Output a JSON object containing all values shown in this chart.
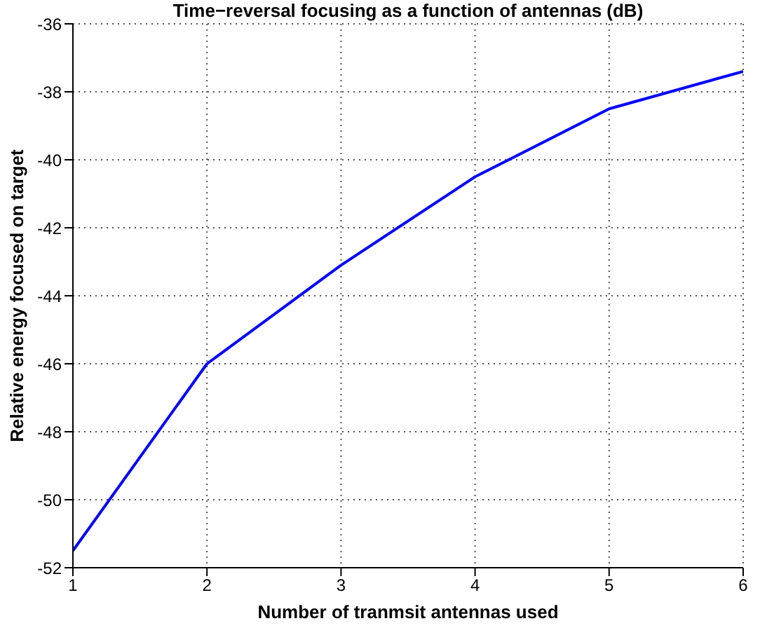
{
  "chart_data": {
    "type": "line",
    "title": "Time−reversal focusing as a function of antennas (dB)",
    "xlabel": "Number of tranmsit antennas used",
    "ylabel": "Relative energy focused on target",
    "x": [
      1,
      2,
      3,
      4,
      5,
      6
    ],
    "series": [
      {
        "color": "#0000ff",
        "values": [
          -51.5,
          -46.0,
          -43.1,
          -40.5,
          -38.5,
          -37.4
        ]
      }
    ],
    "xlim": [
      1,
      6
    ],
    "xticks": [
      1,
      2,
      3,
      4,
      5,
      6
    ],
    "ylim": [
      -52,
      -36
    ],
    "yticks": [
      -52,
      -50,
      -48,
      -46,
      -44,
      -42,
      -40,
      -38,
      -36
    ],
    "grid": true,
    "legend": false,
    "marker": "none",
    "line_style": "solid"
  }
}
